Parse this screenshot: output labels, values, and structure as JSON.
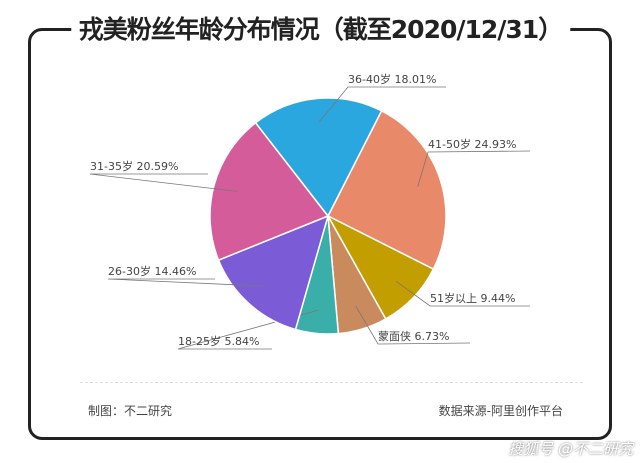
{
  "chart_data": {
    "type": "pie",
    "title": "戎美粉丝年龄分布情况（截至2020/12/31）",
    "slices": [
      {
        "label": "41-50岁",
        "value": 24.93,
        "text": "24.93%",
        "color": "#E8896A"
      },
      {
        "label": "51岁以上",
        "value": 9.44,
        "text": "9.44%",
        "color": "#C29E00"
      },
      {
        "label": "蒙面侠",
        "value": 6.73,
        "text": "6.73%",
        "color": "#C98A5E"
      },
      {
        "label": "18-25岁",
        "value": 5.84,
        "text": "5.84%",
        "color": "#3AAFA9"
      },
      {
        "label": "26-30岁",
        "value": 14.46,
        "text": "14.46%",
        "color": "#7B5CD6"
      },
      {
        "label": "31-35岁",
        "value": 20.59,
        "text": "20.59%",
        "color": "#D45C9A"
      },
      {
        "label": "36-40岁",
        "value": 18.01,
        "text": "18.01%",
        "color": "#2AA7DE"
      }
    ]
  },
  "footer": {
    "left": "制图：不二研究",
    "right": "数据来源-阿里创作平台"
  },
  "watermark": "搜狐号 @不二研究"
}
